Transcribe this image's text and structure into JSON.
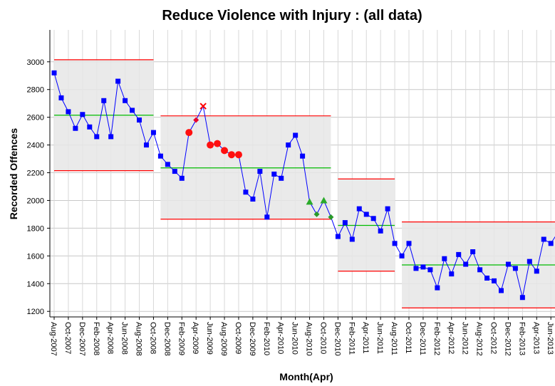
{
  "chart_data": {
    "type": "line",
    "title": "Reduce Violence with Injury : (all data)",
    "y_label": "Recorded Offences",
    "x_label": "Month(Apr)",
    "categories": [
      "Aug-2007",
      null,
      "Oct-2007",
      null,
      "Dec-2007",
      null,
      "Feb-2008",
      null,
      "Apr-2008",
      null,
      "Jun-2008",
      null,
      "Aug-2008",
      null,
      "Oct-2008",
      null,
      "Dec-2008",
      null,
      "Feb-2009",
      null,
      "Apr-2009",
      null,
      "Jun-2009",
      null,
      "Aug-2009",
      null,
      "Oct-2009",
      null,
      "Dec-2009",
      null,
      "Feb-2010",
      null,
      "Apr-2010",
      null,
      "Jun-2010",
      null,
      "Aug-2010",
      null,
      "Oct-2010",
      null,
      "Dec-2010",
      null,
      "Feb-2011",
      null,
      "Apr-2011",
      null,
      "Jun-2011",
      null,
      "Aug-2011",
      null,
      "Oct-2011",
      null,
      "Dec-2011",
      null,
      "Feb-2012",
      null,
      "Apr-2012",
      null,
      "Jun-2012",
      null,
      "Aug-2012",
      null,
      "Oct-2012",
      null,
      "Dec-2012",
      null,
      "Feb-2013",
      null,
      "Apr-2013",
      null,
      "Jun-2013",
      null
    ],
    "series": [
      {
        "color": "#0000ff",
        "values": [
          2920,
          2740,
          2640,
          2520,
          2620,
          2530,
          2460,
          2720,
          2460,
          2860,
          2720,
          2650,
          2580,
          2400,
          2490,
          2320,
          2260,
          2210,
          2160,
          2490,
          2580,
          2680,
          2400,
          2410,
          2360,
          2330,
          2330,
          2060,
          2010,
          2210,
          1880,
          2190,
          2160,
          2400,
          2470,
          2320,
          1990,
          1900,
          2000,
          1880,
          1740,
          1840,
          1720,
          1940,
          1900,
          1870,
          1780,
          1940,
          1690,
          1600,
          1690,
          1510,
          1520,
          1500,
          1370,
          1580,
          1470,
          1610,
          1540,
          1630,
          1500,
          1440,
          1420,
          1350,
          1540,
          1510,
          1300,
          1560,
          1490,
          1720,
          1690,
          1770
        ],
        "markers": [
          "square",
          "square",
          "square",
          "square",
          "square",
          "square",
          "square",
          "square",
          "square",
          "square",
          "square",
          "square",
          "square",
          "square",
          "square",
          "square",
          "square",
          "square",
          "square",
          "red-circle",
          "red-diamond",
          "cross",
          "red-circle",
          "red-circle",
          "red-circle",
          "red-circle",
          "red-circle",
          "square",
          "square",
          "square",
          "square",
          "square",
          "square",
          "square",
          "square",
          "square",
          "green-triangle",
          "green-diamond",
          "green-triangle",
          "green-diamond",
          "square",
          "square",
          "square",
          "square",
          "square",
          "square",
          "square",
          "square",
          "square",
          "square",
          "square",
          "square",
          "square",
          "square",
          "square",
          "square",
          "square",
          "square",
          "square",
          "square",
          "square",
          "square",
          "square",
          "square",
          "square",
          "square",
          "square",
          "square",
          "square",
          "square",
          "square",
          "square"
        ]
      }
    ],
    "phases": [
      {
        "start": 0,
        "end": 14,
        "mean": 2615,
        "ucl": 3015,
        "lcl": 2215
      },
      {
        "start": 15,
        "end": 39,
        "mean": 2235,
        "ucl": 2610,
        "lcl": 1865
      },
      {
        "start": 40,
        "end": 48,
        "mean": 1820,
        "ucl": 2155,
        "lcl": 1490
      },
      {
        "start": 49,
        "end": 71,
        "mean": 1535,
        "ucl": 1845,
        "lcl": 1225
      }
    ],
    "ylim": [
      1160,
      3230
    ],
    "yticks": [
      1200,
      1400,
      1600,
      1800,
      2000,
      2200,
      2400,
      2600,
      2800,
      3000
    ],
    "grid": true
  }
}
